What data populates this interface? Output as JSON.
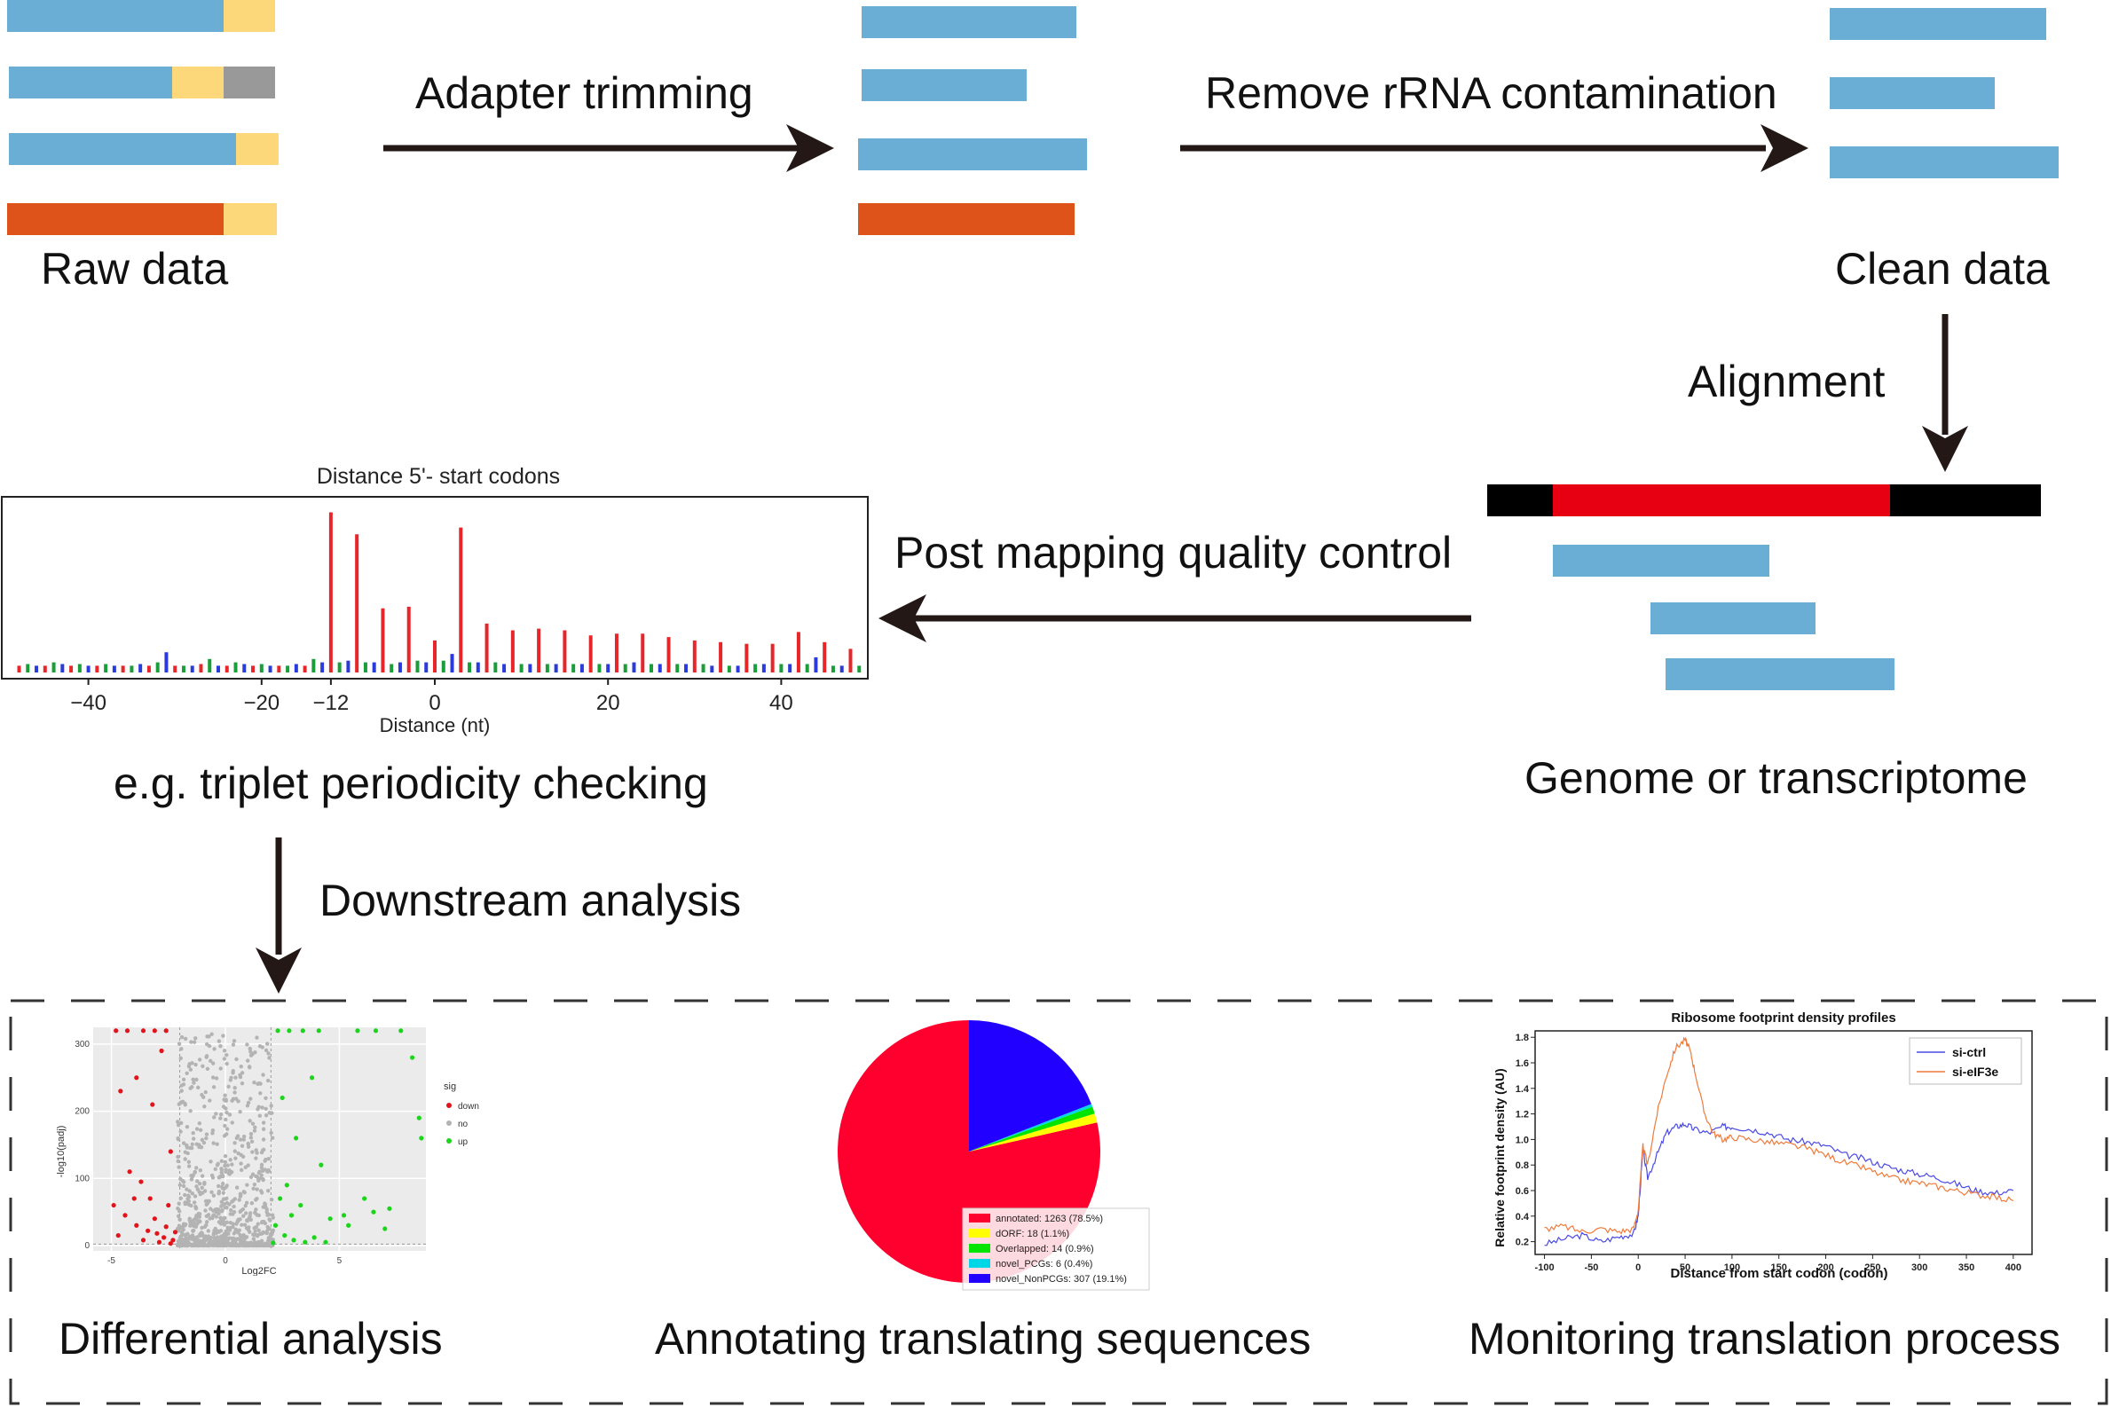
{
  "colors": {
    "read_blue": "#6aaed6",
    "adapter_yellow": "#fdd87a",
    "rrna_orange": "#dd5319",
    "unknown_gray": "#999999",
    "arrow": "#231815",
    "genome_red": "#e60012",
    "genome_black": "#000000"
  },
  "pipeline": {
    "raw_data": "Raw data",
    "adapter_trimming": "Adapter trimming",
    "remove_rrna": "Remove rRNA contamination",
    "clean_data": "Clean data",
    "alignment": "Alignment",
    "post_mapping_qc": "Post mapping quality control",
    "genome_or_transcriptome": "Genome or transcriptome",
    "triplet_periodicity": "e.g. triplet periodicity checking",
    "downstream_analysis": "Downstream analysis"
  },
  "analyses": {
    "differential": "Differential analysis",
    "annotating": "Annotating translating sequences",
    "monitoring": "Monitoring translation process"
  },
  "periodicity_chart": {
    "chart_data": {
      "type": "bar",
      "title": "Distance 5'- start codons",
      "xlabel": "Distance (nt)",
      "xlim": [
        -50,
        50
      ],
      "ylim": [
        0,
        1.0
      ],
      "x_ticks": [
        -40,
        -20,
        -12,
        0,
        20,
        40
      ],
      "x_tick_labels": [
        "−40",
        "−20",
        "−12",
        "0",
        "20",
        "40"
      ],
      "series_colors": {
        "frame0": "#e8262a",
        "frame1": "#1a9e3a",
        "frame2": "#2a3bdb"
      },
      "frame0": {
        "x": [
          -48,
          -45,
          -42,
          -39,
          -36,
          -33,
          -30,
          -27,
          -24,
          -21,
          -18,
          -15,
          -12,
          -9,
          -6,
          -3,
          0,
          3,
          6,
          9,
          12,
          15,
          18,
          21,
          24,
          27,
          30,
          33,
          36,
          39,
          42,
          45,
          48
        ],
        "values": [
          0.04,
          0.04,
          0.04,
          0.04,
          0.04,
          0.04,
          0.04,
          0.05,
          0.04,
          0.04,
          0.04,
          0.04,
          0.95,
          0.82,
          0.38,
          0.39,
          0.19,
          0.86,
          0.29,
          0.25,
          0.26,
          0.25,
          0.22,
          0.23,
          0.23,
          0.21,
          0.19,
          0.18,
          0.17,
          0.17,
          0.24,
          0.18,
          0.14
        ]
      },
      "frame1": {
        "x": [
          -47,
          -44,
          -41,
          -38,
          -35,
          -32,
          -29,
          -26,
          -23,
          -20,
          -17,
          -14,
          -11,
          -8,
          -5,
          -2,
          1,
          4,
          7,
          10,
          13,
          16,
          19,
          22,
          25,
          28,
          31,
          34,
          37,
          40,
          43,
          46,
          49
        ],
        "values": [
          0.05,
          0.06,
          0.05,
          0.05,
          0.04,
          0.06,
          0.04,
          0.08,
          0.06,
          0.05,
          0.04,
          0.08,
          0.06,
          0.06,
          0.05,
          0.07,
          0.07,
          0.06,
          0.06,
          0.05,
          0.05,
          0.05,
          0.05,
          0.05,
          0.05,
          0.05,
          0.05,
          0.04,
          0.05,
          0.05,
          0.05,
          0.04,
          0.04
        ]
      },
      "frame2": {
        "x": [
          -46,
          -43,
          -40,
          -37,
          -34,
          -31,
          -28,
          -25,
          -22,
          -19,
          -16,
          -13,
          -10,
          -7,
          -4,
          -1,
          2,
          5,
          8,
          11,
          14,
          17,
          20,
          23,
          26,
          29,
          32,
          35,
          38,
          41,
          44,
          47
        ],
        "values": [
          0.04,
          0.05,
          0.04,
          0.04,
          0.05,
          0.12,
          0.04,
          0.04,
          0.05,
          0.04,
          0.05,
          0.06,
          0.07,
          0.06,
          0.06,
          0.06,
          0.11,
          0.06,
          0.05,
          0.05,
          0.05,
          0.05,
          0.05,
          0.06,
          0.05,
          0.05,
          0.04,
          0.04,
          0.05,
          0.05,
          0.09,
          0.04
        ]
      }
    }
  },
  "volcano_chart": {
    "chart_data": {
      "type": "scatter",
      "xlabel": "Log2FC",
      "ylabel": "-log10(padj)",
      "xlim": [
        -5.8,
        8.8
      ],
      "ylim": [
        -8,
        325
      ],
      "x_ticks": [
        -5,
        0,
        5
      ],
      "x_tick_labels": [
        "-5",
        "0",
        "5"
      ],
      "y_ticks": [
        0,
        100,
        200,
        300
      ],
      "y_tick_labels": [
        "0",
        "100",
        "200",
        "300"
      ],
      "legend": {
        "title": "sig",
        "entries": [
          "down",
          "no",
          "up"
        ],
        "position": "right"
      },
      "series_colors": {
        "down": "#e3131b",
        "no": "#b3b3b3",
        "up": "#1ad51a"
      },
      "down": [
        [
          -4.8,
          320
        ],
        [
          -4.3,
          320
        ],
        [
          -3.6,
          320
        ],
        [
          -3.1,
          320
        ],
        [
          -2.6,
          320
        ],
        [
          -4.6,
          230
        ],
        [
          -3.9,
          250
        ],
        [
          -3.2,
          210
        ],
        [
          -2.8,
          290
        ],
        [
          -4.2,
          110
        ],
        [
          -3.7,
          95
        ],
        [
          -2.4,
          140
        ],
        [
          -4.9,
          60
        ],
        [
          -4.4,
          45
        ],
        [
          -3.9,
          30
        ],
        [
          -3.4,
          22
        ],
        [
          -3.0,
          18
        ],
        [
          -2.7,
          12
        ],
        [
          -2.3,
          8
        ],
        [
          -2.6,
          28
        ],
        [
          -3.1,
          40
        ],
        [
          -4.7,
          15
        ],
        [
          -3.6,
          8
        ],
        [
          -2.9,
          5
        ],
        [
          -2.4,
          3
        ],
        [
          -2.2,
          20
        ],
        [
          -3.3,
          70
        ],
        [
          -4.0,
          70
        ],
        [
          -2.5,
          60
        ]
      ],
      "up": [
        [
          2.3,
          320
        ],
        [
          2.8,
          320
        ],
        [
          3.4,
          320
        ],
        [
          4.1,
          320
        ],
        [
          5.8,
          320
        ],
        [
          6.6,
          320
        ],
        [
          7.7,
          320
        ],
        [
          2.5,
          220
        ],
        [
          3.1,
          160
        ],
        [
          4.2,
          120
        ],
        [
          3.8,
          250
        ],
        [
          2.7,
          90
        ],
        [
          3.3,
          60
        ],
        [
          4.6,
          40
        ],
        [
          5.4,
          30
        ],
        [
          6.1,
          70
        ],
        [
          7.2,
          55
        ],
        [
          8.2,
          280
        ],
        [
          8.5,
          190
        ],
        [
          8.6,
          160
        ],
        [
          2.2,
          30
        ],
        [
          2.6,
          15
        ],
        [
          3.0,
          8
        ],
        [
          3.5,
          5
        ],
        [
          3.9,
          12
        ],
        [
          4.4,
          5
        ],
        [
          2.1,
          4
        ],
        [
          5.2,
          45
        ],
        [
          6.5,
          50
        ],
        [
          7.0,
          25
        ],
        [
          2.9,
          45
        ],
        [
          2.4,
          70
        ]
      ]
    }
  },
  "pie_chart": {
    "chart_data": {
      "type": "pie",
      "categories": [
        "annotated",
        "dORF",
        "Overlapped",
        "novel_PCGs",
        "novel_NonPCGs"
      ],
      "values": [
        1263,
        18,
        14,
        6,
        307
      ],
      "legend_labels": [
        "annotated: 1263 (78.5%)",
        "dORF: 18 (1.1%)",
        "Overlapped: 14 (0.9%)",
        "novel_PCGs: 6 (0.4%)",
        "novel_NonPCGs: 307 (19.1%)"
      ],
      "colors": [
        "#ff002e",
        "#ffff00",
        "#00e400",
        "#00d7e6",
        "#2200ff"
      ]
    }
  },
  "density_chart": {
    "chart_data": {
      "type": "line",
      "title": "Ribosome footprint density profiles",
      "xlabel": "Distance from start codon (codon)",
      "ylabel": "Relative footprint density (AU)",
      "xlim": [
        -110,
        420
      ],
      "ylim": [
        0.1,
        1.85
      ],
      "x_ticks": [
        -100,
        -50,
        0,
        50,
        100,
        150,
        200,
        250,
        300,
        350,
        400
      ],
      "x_tick_labels": [
        "-100",
        "-50",
        "0",
        "50",
        "100",
        "150",
        "200",
        "250",
        "300",
        "350",
        "400"
      ],
      "y_ticks": [
        0.2,
        0.4,
        0.6,
        0.8,
        1.0,
        1.2,
        1.4,
        1.6,
        1.8
      ],
      "y_tick_labels": [
        "0.2",
        "0.4",
        "0.6",
        "0.8",
        "1.0",
        "1.2",
        "1.4",
        "1.6",
        "1.8"
      ],
      "legend_position": "top-right",
      "series": [
        {
          "name": "si-ctrl",
          "color": "#4a4ae6",
          "x": [
            -100,
            -80,
            -60,
            -40,
            -20,
            -5,
            0,
            5,
            10,
            20,
            30,
            40,
            50,
            60,
            75,
            90,
            100,
            120,
            140,
            160,
            180,
            200,
            220,
            240,
            260,
            280,
            300,
            320,
            340,
            360,
            380,
            400
          ],
          "values": [
            0.18,
            0.22,
            0.25,
            0.2,
            0.24,
            0.26,
            0.4,
            0.92,
            0.7,
            0.88,
            1.05,
            1.1,
            1.12,
            1.08,
            1.05,
            1.1,
            1.1,
            1.08,
            1.05,
            1.0,
            0.98,
            0.95,
            0.88,
            0.85,
            0.8,
            0.76,
            0.73,
            0.7,
            0.65,
            0.6,
            0.58,
            0.6
          ]
        },
        {
          "name": "si-eIF3e",
          "color": "#f07a3a",
          "x": [
            -100,
            -80,
            -60,
            -40,
            -20,
            -5,
            0,
            5,
            10,
            20,
            30,
            40,
            50,
            55,
            60,
            70,
            80,
            90,
            100,
            120,
            140,
            160,
            180,
            200,
            220,
            240,
            260,
            280,
            300,
            320,
            340,
            360,
            380,
            400
          ],
          "values": [
            0.3,
            0.32,
            0.28,
            0.3,
            0.28,
            0.3,
            0.45,
            0.95,
            0.8,
            1.2,
            1.5,
            1.72,
            1.78,
            1.7,
            1.55,
            1.22,
            1.05,
            1.0,
            1.02,
            1.0,
            0.98,
            0.96,
            0.93,
            0.88,
            0.82,
            0.78,
            0.72,
            0.68,
            0.66,
            0.63,
            0.6,
            0.57,
            0.55,
            0.52
          ]
        }
      ]
    }
  }
}
